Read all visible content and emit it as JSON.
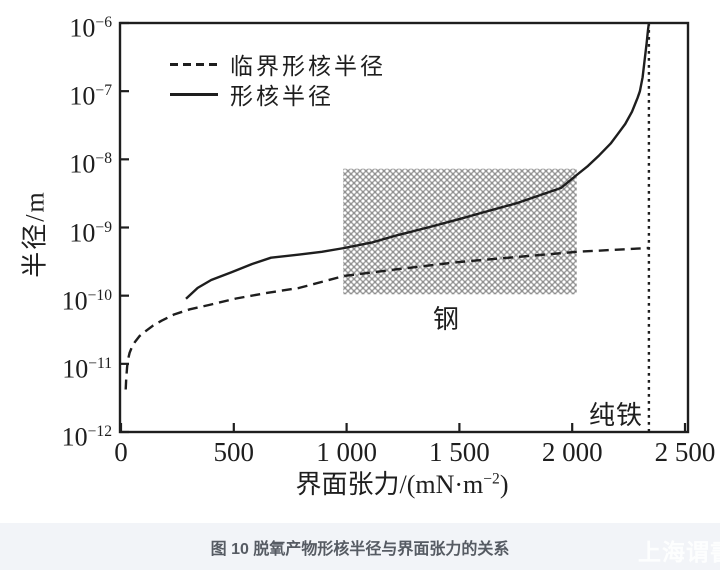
{
  "page": {
    "background": "#ffffff",
    "ink_color": "#1e1e1e",
    "caption_bar": {
      "text": "图 10 脱氧产物形核半径与界面张力的关系",
      "background": "#f2f4f8",
      "text_color": "#565b63"
    },
    "watermark": {
      "text": "上海谓書",
      "color": "#ffffff"
    }
  },
  "chart_data": {
    "type": "line",
    "title": "",
    "xlabel": "界面张力/(mN·m⁻²)",
    "xlabel_parts": {
      "main": "界面张力/(mN·m",
      "sup": "−2",
      "close": ")"
    },
    "ylabel": "半径/m",
    "x_axis": {
      "min": 0,
      "max": 2500,
      "ticks": [
        0,
        500,
        1000,
        1500,
        2000,
        2500
      ],
      "tick_labels": [
        "0",
        "500",
        "1 000",
        "1 500",
        "2 000",
        "2 500"
      ]
    },
    "y_axis": {
      "scale": "log",
      "min_exponent": -12,
      "max_exponent": -6,
      "tick_base": "10",
      "tick_exponents": [
        -6,
        -7,
        -8,
        -9,
        -10,
        -11,
        -12
      ]
    },
    "grid": false,
    "legend": {
      "position": "top-left-inside",
      "entries": [
        {
          "label": "临界形核半径",
          "style": "dashed"
        },
        {
          "label": "形核半径",
          "style": "solid"
        }
      ]
    },
    "series": [
      {
        "name": "临界形核半径",
        "style": "dashed",
        "color": "#1e1e1e",
        "points": [
          [
            21,
            4.2e-12
          ],
          [
            23,
            6e-12
          ],
          [
            27,
            9e-12
          ],
          [
            31,
            1.15e-11
          ],
          [
            38,
            1.45e-11
          ],
          [
            48,
            1.75e-11
          ],
          [
            62,
            2.1e-11
          ],
          [
            82,
            2.55e-11
          ],
          [
            108,
            3e-11
          ],
          [
            140,
            3.6e-11
          ],
          [
            180,
            4.3e-11
          ],
          [
            235,
            5.3e-11
          ],
          [
            305,
            6.3e-11
          ],
          [
            390,
            7.3e-11
          ],
          [
            510,
            9.1e-11
          ],
          [
            650,
            1.1e-10
          ],
          [
            790,
            1.3e-10
          ],
          [
            990,
            1.95e-10
          ],
          [
            1230,
            2.45e-10
          ],
          [
            1490,
            3.1e-10
          ],
          [
            1760,
            3.7e-10
          ],
          [
            2020,
            4.4e-10
          ],
          [
            2340,
            5e-10
          ]
        ]
      },
      {
        "name": "形核半径",
        "style": "solid",
        "color": "#1e1e1e",
        "points": [
          [
            288,
            9e-11
          ],
          [
            340,
            1.3e-10
          ],
          [
            400,
            1.7e-10
          ],
          [
            490,
            2.2e-10
          ],
          [
            580,
            2.9e-10
          ],
          [
            665,
            3.6e-10
          ],
          [
            790,
            4e-10
          ],
          [
            890,
            4.4e-10
          ],
          [
            990,
            5e-10
          ],
          [
            1110,
            6e-10
          ],
          [
            1230,
            7.8e-10
          ],
          [
            1360,
            1e-09
          ],
          [
            1490,
            1.3e-09
          ],
          [
            1630,
            1.75e-09
          ],
          [
            1760,
            2.3e-09
          ],
          [
            1950,
            3.8e-09
          ],
          [
            2020,
            5.9e-09
          ],
          [
            2070,
            8e-09
          ],
          [
            2120,
            1.15e-08
          ],
          [
            2170,
            1.7e-08
          ],
          [
            2200,
            2.3e-08
          ],
          [
            2235,
            3.3e-08
          ],
          [
            2265,
            5e-08
          ],
          [
            2290,
            8e-08
          ],
          [
            2300,
            1e-07
          ],
          [
            2312,
            1.6e-07
          ],
          [
            2322,
            3e-07
          ],
          [
            2330,
            5e-07
          ],
          [
            2336,
            7.9e-07
          ],
          [
            2340,
            1e-06
          ]
        ]
      }
    ],
    "annotations": {
      "steel_region": {
        "label": "钢",
        "x_range": [
          985,
          2020
        ],
        "r_range": [
          1.05e-10,
          7.3e-09
        ],
        "pattern": "crosshatch-dots",
        "color": "#919191"
      },
      "pure_iron_line": {
        "label": "纯铁",
        "x": 2340,
        "style": "dotted"
      }
    }
  }
}
